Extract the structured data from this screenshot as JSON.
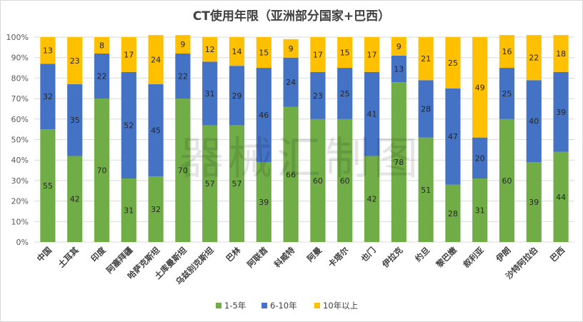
{
  "chart_data": {
    "type": "bar",
    "stacked": true,
    "percent": true,
    "title": "CT使用年限（亚洲部分国家+巴西）",
    "categories": [
      "中国",
      "土耳其",
      "印度",
      "阿塞拜疆",
      "哈萨克斯坦",
      "土库曼斯坦",
      "乌兹别克斯坦",
      "巴林",
      "阿联酋",
      "科威特",
      "阿曼",
      "卡塔尔",
      "也门",
      "伊拉克",
      "约旦",
      "黎巴嫩",
      "叙利亚",
      "伊朗",
      "沙特阿拉伯",
      "巴西"
    ],
    "series": [
      {
        "name": "1-5年",
        "color": "#70ad47",
        "values": [
          55,
          42,
          70,
          31,
          32,
          70,
          57,
          57,
          39,
          66,
          60,
          60,
          42,
          78,
          51,
          28,
          31,
          60,
          39,
          44
        ]
      },
      {
        "name": "6-10年",
        "color": "#4472c4",
        "values": [
          32,
          35,
          22,
          52,
          45,
          22,
          31,
          29,
          46,
          24,
          23,
          25,
          41,
          13,
          28,
          47,
          20,
          25,
          40,
          39
        ]
      },
      {
        "name": "10年以上",
        "color": "#ffc000",
        "values": [
          13,
          23,
          8,
          17,
          24,
          9,
          12,
          14,
          15,
          9,
          17,
          15,
          17,
          9,
          21,
          25,
          49,
          16,
          22,
          18
        ]
      }
    ],
    "yticks": [
      "0%",
      "10%",
      "20%",
      "30%",
      "40%",
      "50%",
      "60%",
      "70%",
      "80%",
      "90%",
      "100%"
    ],
    "ylim": [
      0,
      100
    ],
    "grid": true,
    "legend_position": "bottom",
    "watermark": "器械汇制图"
  }
}
